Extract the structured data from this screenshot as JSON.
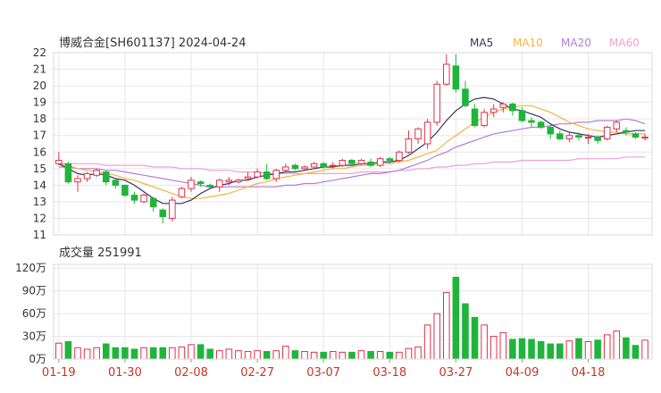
{
  "title": "博威合金[SH601137] 2024-04-24",
  "legend": [
    {
      "label": "MA5",
      "color": "#333366"
    },
    {
      "label": "MA10",
      "color": "#f5b342"
    },
    {
      "label": "MA20",
      "color": "#b07fdc"
    },
    {
      "label": "MA60",
      "color": "#f0a0d0"
    }
  ],
  "volume_label": "成交量 251991",
  "colors": {
    "up": "#e0324b",
    "down": "#1fb53b"
  },
  "chart_data": [
    {
      "type": "candlestick",
      "ylim": [
        11,
        22
      ],
      "yticks": [
        "11",
        "12",
        "13",
        "14",
        "15",
        "16",
        "17",
        "18",
        "19",
        "20",
        "21",
        "22"
      ],
      "x_tick_labels": [
        "01-19",
        "01-30",
        "02-08",
        "02-27",
        "03-07",
        "03-18",
        "03-27",
        "04-09",
        "04-18"
      ],
      "x_tick_index": [
        0,
        7,
        14,
        21,
        28,
        35,
        42,
        49,
        56
      ],
      "ohlc": [
        [
          15.3,
          15.5,
          16.0,
          15.2
        ],
        [
          15.3,
          14.2,
          15.4,
          14.1
        ],
        [
          14.2,
          14.4,
          14.6,
          13.6
        ],
        [
          14.4,
          14.7,
          14.8,
          14.2
        ],
        [
          14.6,
          14.9,
          15.0,
          14.5
        ],
        [
          14.8,
          14.2,
          14.9,
          14.0
        ],
        [
          14.3,
          14.0,
          14.4,
          13.8
        ],
        [
          14.0,
          13.4,
          14.0,
          13.3
        ],
        [
          13.4,
          13.1,
          13.6,
          12.9
        ],
        [
          13.0,
          13.4,
          13.5,
          12.9
        ],
        [
          13.2,
          12.7,
          13.3,
          12.4
        ],
        [
          12.5,
          12.1,
          12.6,
          11.7
        ],
        [
          12.0,
          13.1,
          13.3,
          11.8
        ],
        [
          13.3,
          13.8,
          13.9,
          13.2
        ],
        [
          13.8,
          14.3,
          14.5,
          13.6
        ],
        [
          14.2,
          14.1,
          14.3,
          13.9
        ],
        [
          14.0,
          13.9,
          14.1,
          13.8
        ],
        [
          13.9,
          14.3,
          14.4,
          13.6
        ],
        [
          14.2,
          14.3,
          14.5,
          14.0
        ],
        [
          14.2,
          14.3,
          14.4,
          14.1
        ],
        [
          14.4,
          14.5,
          14.8,
          14.3
        ],
        [
          14.5,
          14.8,
          15.0,
          14.4
        ],
        [
          14.8,
          14.4,
          15.3,
          14.3
        ],
        [
          14.4,
          14.9,
          15.0,
          14.2
        ],
        [
          14.9,
          15.1,
          15.3,
          14.8
        ],
        [
          15.2,
          15.0,
          15.3,
          14.9
        ],
        [
          15.0,
          15.1,
          15.2,
          14.9
        ],
        [
          15.1,
          15.3,
          15.4,
          15.0
        ],
        [
          15.3,
          15.1,
          15.4,
          15.0
        ],
        [
          15.2,
          15.2,
          15.4,
          15.0
        ],
        [
          15.2,
          15.5,
          15.6,
          15.1
        ],
        [
          15.5,
          15.3,
          15.6,
          15.2
        ],
        [
          15.3,
          15.5,
          15.6,
          15.2
        ],
        [
          15.4,
          15.2,
          15.6,
          15.1
        ],
        [
          15.2,
          15.6,
          15.7,
          15.1
        ],
        [
          15.6,
          15.5,
          15.7,
          15.3
        ],
        [
          15.5,
          16.0,
          16.1,
          15.4
        ],
        [
          16.0,
          16.8,
          17.3,
          15.9
        ],
        [
          16.8,
          17.4,
          17.5,
          16.5
        ],
        [
          16.5,
          17.8,
          18.0,
          16.2
        ],
        [
          17.8,
          20.1,
          20.3,
          17.6
        ],
        [
          20.1,
          21.3,
          21.9,
          20.0
        ],
        [
          21.2,
          19.8,
          21.9,
          19.6
        ],
        [
          19.8,
          18.8,
          20.3,
          18.7
        ],
        [
          18.6,
          17.6,
          18.9,
          17.5
        ],
        [
          17.6,
          18.4,
          18.6,
          17.5
        ],
        [
          18.4,
          18.6,
          18.9,
          18.1
        ],
        [
          18.7,
          18.9,
          19.0,
          18.4
        ],
        [
          18.9,
          18.5,
          19.0,
          18.2
        ],
        [
          18.5,
          17.9,
          18.7,
          17.8
        ],
        [
          17.9,
          17.8,
          18.1,
          17.5
        ],
        [
          17.8,
          17.5,
          17.9,
          17.4
        ],
        [
          17.5,
          17.1,
          17.6,
          16.8
        ],
        [
          17.1,
          16.8,
          17.3,
          16.7
        ],
        [
          16.8,
          17.0,
          17.2,
          16.6
        ],
        [
          17.0,
          16.9,
          17.2,
          16.7
        ],
        [
          16.9,
          16.9,
          17.1,
          16.5
        ],
        [
          16.9,
          16.7,
          17.0,
          16.5
        ],
        [
          16.8,
          17.5,
          17.6,
          16.7
        ],
        [
          17.4,
          17.8,
          17.9,
          17.2
        ],
        [
          17.3,
          17.2,
          17.5,
          17.0
        ],
        [
          17.1,
          16.9,
          17.2,
          16.8
        ],
        [
          16.9,
          16.9,
          17.1,
          16.7
        ]
      ],
      "ma5": [
        15.3,
        15.0,
        14.7,
        14.6,
        14.7,
        14.6,
        14.4,
        14.3,
        14.0,
        13.6,
        13.2,
        12.9,
        12.9,
        12.9,
        13.1,
        13.5,
        13.8,
        14.0,
        14.1,
        14.3,
        14.3,
        14.5,
        14.6,
        14.7,
        14.8,
        14.8,
        14.9,
        15.0,
        15.1,
        15.1,
        15.2,
        15.2,
        15.3,
        15.3,
        15.4,
        15.4,
        15.5,
        15.8,
        16.2,
        16.6,
        17.2,
        17.9,
        18.5,
        18.9,
        19.2,
        19.3,
        19.2,
        18.9,
        18.6,
        18.5,
        18.3,
        18.1,
        17.7,
        17.4,
        17.2,
        17.1,
        17.0,
        16.9,
        17.0,
        17.1,
        17.2,
        17.3,
        17.3
      ],
      "ma10": [
        15.3,
        15.2,
        15.0,
        14.9,
        14.8,
        14.7,
        14.6,
        14.4,
        14.3,
        14.1,
        13.9,
        13.7,
        13.5,
        13.3,
        13.2,
        13.2,
        13.3,
        13.4,
        13.5,
        13.7,
        13.9,
        14.1,
        14.2,
        14.4,
        14.5,
        14.6,
        14.7,
        14.8,
        14.9,
        15.0,
        15.0,
        15.1,
        15.2,
        15.2,
        15.3,
        15.3,
        15.4,
        15.5,
        15.7,
        15.9,
        16.1,
        16.6,
        17.0,
        17.4,
        17.8,
        18.1,
        18.4,
        18.6,
        18.7,
        18.8,
        18.8,
        18.6,
        18.4,
        18.1,
        17.8,
        17.6,
        17.4,
        17.3,
        17.2,
        17.2,
        17.1,
        17.1,
        17.1
      ],
      "ma20": [
        15.1,
        15.1,
        15.0,
        15.0,
        15.0,
        14.9,
        14.9,
        14.8,
        14.7,
        14.6,
        14.5,
        14.4,
        14.3,
        14.2,
        14.1,
        14.0,
        13.9,
        13.9,
        13.9,
        13.9,
        13.9,
        13.9,
        13.9,
        13.9,
        14.0,
        14.0,
        14.1,
        14.1,
        14.2,
        14.3,
        14.4,
        14.5,
        14.6,
        14.7,
        14.7,
        14.8,
        14.9,
        15.1,
        15.3,
        15.5,
        15.8,
        16.0,
        16.3,
        16.5,
        16.7,
        16.9,
        17.1,
        17.2,
        17.3,
        17.4,
        17.5,
        17.5,
        17.6,
        17.7,
        17.7,
        17.8,
        17.8,
        17.9,
        17.9,
        17.9,
        18.0,
        17.9,
        17.7
      ],
      "ma60": [
        15.3,
        15.3,
        15.3,
        15.3,
        15.3,
        15.2,
        15.2,
        15.2,
        15.2,
        15.2,
        15.1,
        15.1,
        15.1,
        15.0,
        15.0,
        15.0,
        14.9,
        14.9,
        14.9,
        14.8,
        14.8,
        14.8,
        14.7,
        14.7,
        14.7,
        14.7,
        14.7,
        14.7,
        14.7,
        14.7,
        14.7,
        14.7,
        14.8,
        14.8,
        14.8,
        14.8,
        14.9,
        14.9,
        15.0,
        15.0,
        15.1,
        15.1,
        15.2,
        15.2,
        15.3,
        15.3,
        15.4,
        15.4,
        15.4,
        15.5,
        15.5,
        15.5,
        15.5,
        15.5,
        15.5,
        15.6,
        15.6,
        15.6,
        15.6,
        15.6,
        15.7,
        15.7,
        15.7
      ]
    },
    {
      "type": "bar",
      "name": "成交量",
      "ylim": [
        0,
        125
      ],
      "yticks": [
        "0万",
        "30万",
        "60万",
        "90万",
        "120万"
      ],
      "ytick_values": [
        0,
        30,
        60,
        90,
        120
      ],
      "values": [
        21,
        23,
        15,
        13,
        15,
        20,
        15,
        15,
        13,
        15,
        15,
        15,
        15,
        16,
        19,
        19,
        13,
        11,
        13,
        11,
        10,
        11,
        10,
        11,
        17,
        11,
        10,
        9,
        9,
        10,
        9,
        9,
        11,
        10,
        10,
        9,
        9,
        14,
        16,
        45,
        60,
        88,
        108,
        73,
        55,
        45,
        30,
        35,
        26,
        27,
        26,
        23,
        20,
        20,
        24,
        27,
        23,
        25,
        32,
        37,
        28,
        18,
        25
      ]
    }
  ]
}
